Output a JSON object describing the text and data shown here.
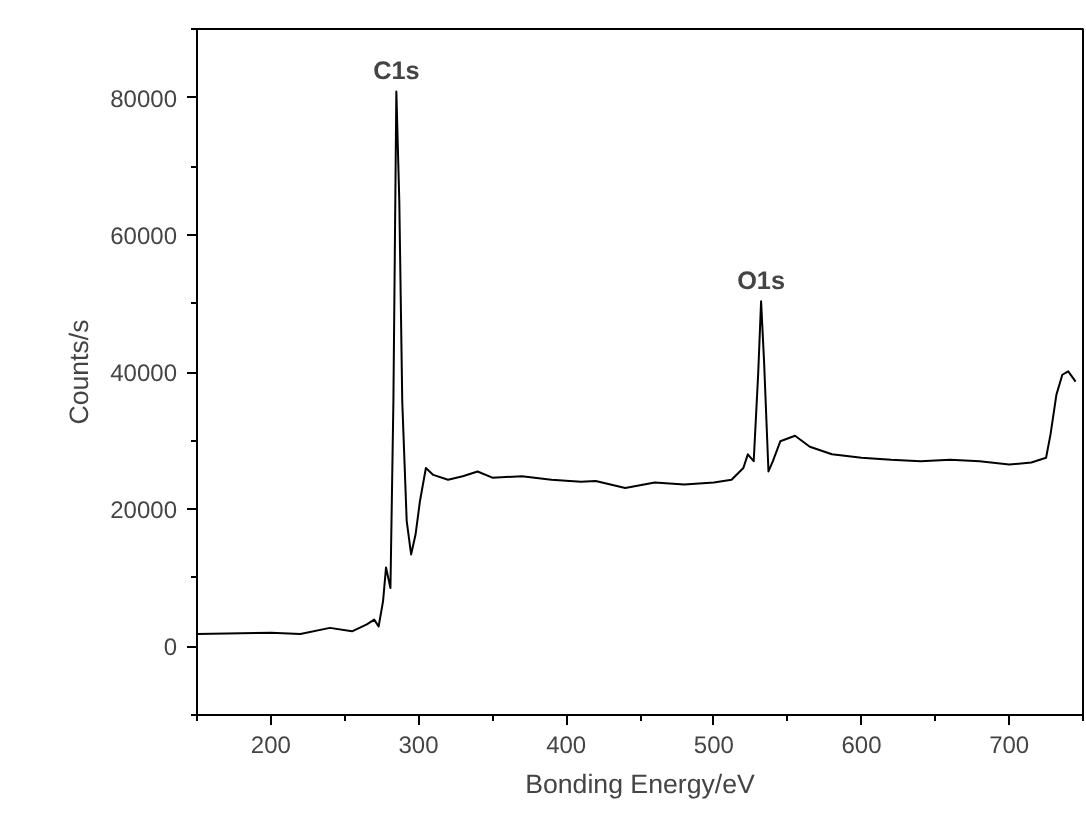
{
  "chart_data": {
    "type": "line",
    "xlabel": "Bonding Energy/eV",
    "ylabel": "Counts/s",
    "x": [
      150,
      200,
      220,
      240,
      255,
      265,
      270,
      273,
      276,
      278,
      281,
      283,
      285,
      287,
      289,
      292,
      295,
      298,
      301,
      305,
      310,
      320,
      330,
      340,
      350,
      370,
      390,
      410,
      420,
      440,
      460,
      480,
      500,
      512,
      520,
      523,
      527,
      530,
      532,
      534,
      537,
      540,
      545,
      555,
      565,
      580,
      600,
      620,
      640,
      660,
      680,
      700,
      715,
      725,
      728,
      732,
      736,
      740,
      745
    ],
    "series": [
      {
        "color": "#000000",
        "values": [
          1800,
          2000,
          1800,
          2700,
          2200,
          3200,
          3900,
          2900,
          6600,
          11500,
          8500,
          35700,
          80900,
          64900,
          35700,
          18300,
          13400,
          16300,
          21200,
          26000,
          25000,
          24300,
          24800,
          25500,
          24600,
          24800,
          24300,
          24000,
          24100,
          23100,
          23900,
          23600,
          23900,
          24300,
          26000,
          28000,
          27000,
          39600,
          50300,
          41600,
          25500,
          27000,
          29900,
          30700,
          29100,
          28000,
          27500,
          27200,
          27000,
          27200,
          27000,
          26500,
          26800,
          27500,
          30900,
          36700,
          39600,
          40100,
          38600
        ]
      }
    ],
    "xlim": [
      150,
      750
    ],
    "ylim": [
      -10000,
      90000
    ],
    "xticks": [
      200,
      300,
      400,
      500,
      600,
      700
    ],
    "yticks": [
      0,
      20000,
      40000,
      60000,
      80000
    ],
    "annotations": [
      {
        "text": "C1s",
        "x": 285,
        "y": 80900
      },
      {
        "text": "O1s",
        "x": 532,
        "y": 50300
      }
    ],
    "grid": false,
    "marker": "none",
    "line_style": "solid"
  }
}
